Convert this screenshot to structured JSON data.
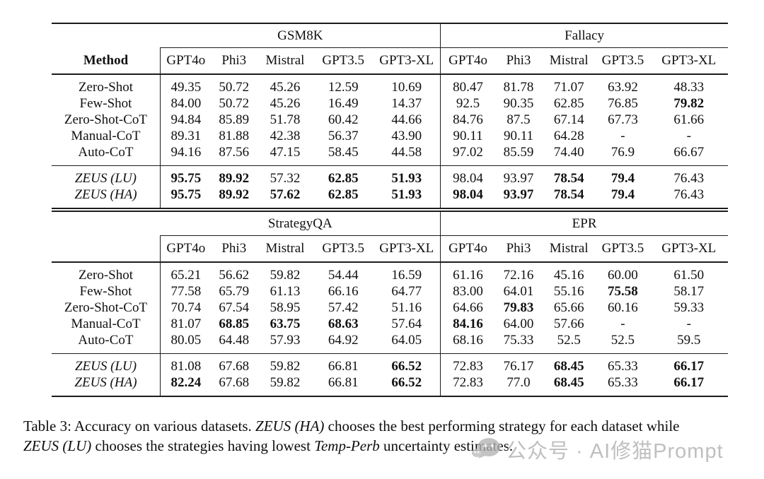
{
  "page": {
    "background": "#ffffff",
    "text_color": "#111111",
    "rule_color": "#1c1c1c",
    "watermark_color": "#aeaeae"
  },
  "tables": [
    {
      "name": "gsm8k-fallacy",
      "corner_label": "",
      "method_header": "Method",
      "groups": [
        {
          "label": "GSM8K"
        },
        {
          "label": "Fallacy"
        }
      ],
      "model_headers": [
        "GPT4o",
        "Phi3",
        "Mistral",
        "GPT3.5",
        "GPT3-XL",
        "GPT4o",
        "Phi3",
        "Mistral",
        "GPT3.5",
        "GPT3-XL"
      ],
      "rows": [
        {
          "method": "Zero-Shot",
          "values": [
            "49.35",
            "50.72",
            "45.26",
            "12.59",
            "10.69",
            "80.47",
            "81.78",
            "71.07",
            "63.92",
            "48.33"
          ],
          "bold": []
        },
        {
          "method": "Few-Shot",
          "values": [
            "84.00",
            "50.72",
            "45.26",
            "16.49",
            "14.37",
            "92.5",
            "90.35",
            "62.85",
            "76.85",
            "79.82"
          ],
          "bold": [
            9
          ]
        },
        {
          "method": "Zero-Shot-CoT",
          "values": [
            "94.84",
            "85.89",
            "51.78",
            "60.42",
            "44.66",
            "84.76",
            "87.5",
            "67.14",
            "67.73",
            "61.66"
          ],
          "bold": []
        },
        {
          "method": "Manual-CoT",
          "values": [
            "89.31",
            "81.88",
            "42.38",
            "56.37",
            "43.90",
            "90.11",
            "90.11",
            "64.28",
            "-",
            "-"
          ],
          "bold": []
        },
        {
          "method": "Auto-CoT",
          "values": [
            "94.16",
            "87.56",
            "47.15",
            "58.45",
            "44.58",
            "97.02",
            "85.59",
            "74.40",
            "76.9",
            "66.67"
          ],
          "bold": []
        }
      ],
      "zeus_rows": [
        {
          "method": "ZEUS (LU)",
          "values": [
            "95.75",
            "89.92",
            "57.32",
            "62.85",
            "51.93",
            "98.04",
            "93.97",
            "78.54",
            "79.4",
            "76.43"
          ],
          "bold": [
            0,
            1,
            3,
            4,
            7,
            8
          ]
        },
        {
          "method": "ZEUS (HA)",
          "values": [
            "95.75",
            "89.92",
            "57.62",
            "62.85",
            "51.93",
            "98.04",
            "93.97",
            "78.54",
            "79.4",
            "76.43"
          ],
          "bold": [
            0,
            1,
            2,
            3,
            4,
            5,
            6,
            7,
            8
          ]
        }
      ]
    },
    {
      "name": "strategyqa-epr",
      "corner_label": "",
      "method_header": "",
      "groups": [
        {
          "label": "StrategyQA"
        },
        {
          "label": "EPR"
        }
      ],
      "model_headers": [
        "GPT4o",
        "Phi3",
        "Mistral",
        "GPT3.5",
        "GPT3-XL",
        "GPT4o",
        "Phi3",
        "Mistral",
        "GPT3.5",
        "GPT3-XL"
      ],
      "rows": [
        {
          "method": "Zero-Shot",
          "values": [
            "65.21",
            "56.62",
            "59.82",
            "54.44",
            "16.59",
            "61.16",
            "72.16",
            "45.16",
            "60.00",
            "61.50"
          ],
          "bold": []
        },
        {
          "method": "Few-Shot",
          "values": [
            "77.58",
            "65.79",
            "61.13",
            "66.16",
            "64.77",
            "83.00",
            "64.01",
            "55.16",
            "75.58",
            "58.17"
          ],
          "bold": [
            8
          ]
        },
        {
          "method": "Zero-Shot-CoT",
          "values": [
            "70.74",
            "67.54",
            "58.95",
            "57.42",
            "51.16",
            "64.66",
            "79.83",
            "65.66",
            "60.16",
            "59.33"
          ],
          "bold": [
            6
          ]
        },
        {
          "method": "Manual-CoT",
          "values": [
            "81.07",
            "68.85",
            "63.75",
            "68.63",
            "57.64",
            "84.16",
            "64.00",
            "57.66",
            "-",
            "-"
          ],
          "bold": [
            1,
            2,
            3,
            5
          ]
        },
        {
          "method": "Auto-CoT",
          "values": [
            "80.05",
            "64.48",
            "57.93",
            "64.92",
            "64.05",
            "68.16",
            "75.33",
            "52.5",
            "52.5",
            "59.5"
          ],
          "bold": []
        }
      ],
      "zeus_rows": [
        {
          "method": "ZEUS (LU)",
          "values": [
            "81.08",
            "67.68",
            "59.82",
            "66.81",
            "66.52",
            "72.83",
            "76.17",
            "68.45",
            "65.33",
            "66.17"
          ],
          "bold": [
            4,
            7,
            9
          ]
        },
        {
          "method": "ZEUS (HA)",
          "values": [
            "82.24",
            "67.68",
            "59.82",
            "66.81",
            "66.52",
            "72.83",
            "77.0",
            "68.45",
            "65.33",
            "66.17"
          ],
          "bold": [
            0,
            4,
            7,
            9
          ]
        }
      ]
    }
  ],
  "caption": {
    "lines": [
      [
        {
          "t": "Table 3: Accuracy on various datasets. "
        },
        {
          "t": "ZEUS (HA)",
          "i": true
        },
        {
          "t": " chooses the best performing strategy for each dataset while"
        }
      ],
      [
        {
          "t": "ZEUS (LU)",
          "i": true
        },
        {
          "t": " chooses the strategies having lowest "
        },
        {
          "t": "Temp-Perb",
          "i": true
        },
        {
          "t": " uncertainty estimates."
        }
      ]
    ]
  },
  "watermark": {
    "icon": "chat-bubbles-icon",
    "text": "公众号 · AI修猫Prompt"
  }
}
